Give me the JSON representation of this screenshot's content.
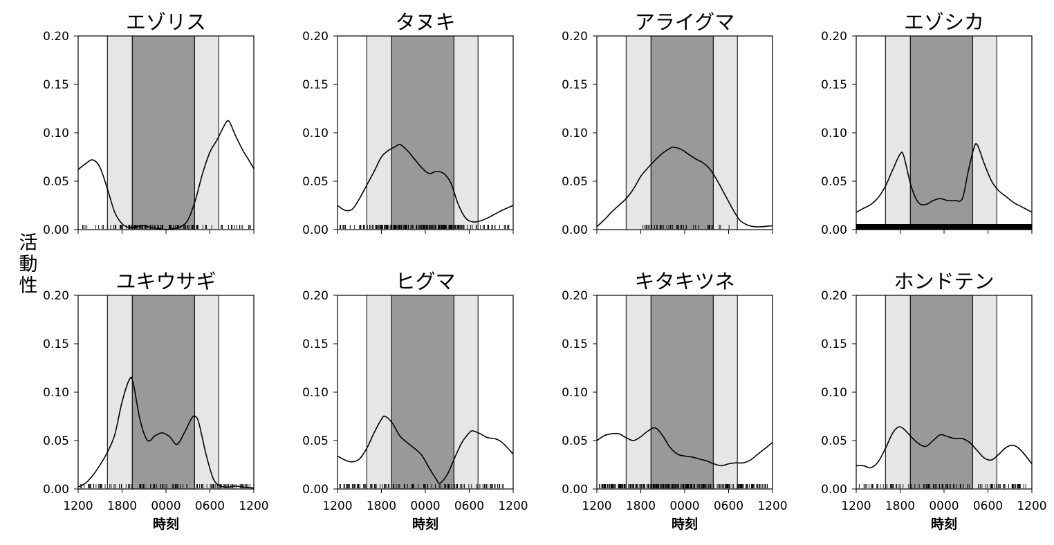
{
  "figure": {
    "ylabel": "活動性",
    "xlabel": "時刻"
  },
  "colors": {
    "twilight_band": "#e6e6e6",
    "night_band": "#999999",
    "curve": "#000000",
    "frame": "#000000"
  },
  "chart_data": [
    {
      "type": "line",
      "title": "エゾリス",
      "x_ticks": [
        "1200",
        "1800",
        "0000",
        "0600",
        "1200"
      ],
      "y_ticks": [
        "0.00",
        "0.05",
        "0.10",
        "0.15",
        "0.20"
      ],
      "ylim": [
        0,
        0.2
      ],
      "xlim": [
        12,
        36
      ],
      "twilight_bands": [
        [
          16,
          19.4
        ],
        [
          27.9,
          31.2
        ]
      ],
      "night_band": [
        19.4,
        27.9
      ],
      "curve": [
        [
          12,
          0.062
        ],
        [
          13,
          0.068
        ],
        [
          14,
          0.072
        ],
        [
          15,
          0.064
        ],
        [
          16,
          0.042
        ],
        [
          17,
          0.018
        ],
        [
          18,
          0.006
        ],
        [
          19,
          0.002
        ],
        [
          20,
          0.003
        ],
        [
          21,
          0.004
        ],
        [
          22,
          0.002
        ],
        [
          23,
          0.001
        ],
        [
          24,
          0
        ],
        [
          25,
          0.001
        ],
        [
          26,
          0.003
        ],
        [
          27,
          0.01
        ],
        [
          28,
          0.03
        ],
        [
          29,
          0.058
        ],
        [
          30,
          0.08
        ],
        [
          31,
          0.093
        ],
        [
          32,
          0.108
        ],
        [
          32.6,
          0.112
        ],
        [
          33.5,
          0.097
        ],
        [
          34.5,
          0.082
        ],
        [
          35.3,
          0.072
        ],
        [
          36,
          0.063
        ]
      ],
      "rug": "sparse-mixed"
    },
    {
      "type": "line",
      "title": "タヌキ",
      "x_ticks": [
        "1200",
        "1800",
        "0000",
        "0600",
        "1200"
      ],
      "y_ticks": [
        "0.00",
        "0.05",
        "0.10",
        "0.15",
        "0.20"
      ],
      "ylim": [
        0,
        0.2
      ],
      "xlim": [
        12,
        36
      ],
      "twilight_bands": [
        [
          16,
          19.4
        ],
        [
          27.9,
          31.2
        ]
      ],
      "night_band": [
        19.4,
        27.9
      ],
      "curve": [
        [
          12,
          0.025
        ],
        [
          13,
          0.02
        ],
        [
          14,
          0.021
        ],
        [
          15,
          0.032
        ],
        [
          16,
          0.046
        ],
        [
          17,
          0.06
        ],
        [
          18,
          0.075
        ],
        [
          19,
          0.082
        ],
        [
          20,
          0.086
        ],
        [
          20.5,
          0.088
        ],
        [
          21.5,
          0.082
        ],
        [
          22.5,
          0.073
        ],
        [
          23.5,
          0.064
        ],
        [
          24.5,
          0.058
        ],
        [
          25.5,
          0.06
        ],
        [
          26.5,
          0.058
        ],
        [
          27.5,
          0.048
        ],
        [
          28.5,
          0.026
        ],
        [
          29.5,
          0.012
        ],
        [
          30.5,
          0.008
        ],
        [
          31.5,
          0.009
        ],
        [
          32.5,
          0.012
        ],
        [
          33.5,
          0.016
        ],
        [
          34.5,
          0.02
        ],
        [
          36,
          0.025
        ]
      ],
      "rug": "dense-night"
    },
    {
      "type": "line",
      "title": "アライグマ",
      "x_ticks": [
        "1200",
        "1800",
        "0000",
        "0600",
        "1200"
      ],
      "y_ticks": [
        "0.00",
        "0.05",
        "0.10",
        "0.15",
        "0.20"
      ],
      "ylim": [
        0,
        0.2
      ],
      "xlim": [
        12,
        36
      ],
      "twilight_bands": [
        [
          16,
          19.4
        ],
        [
          27.9,
          31.2
        ]
      ],
      "night_band": [
        19.4,
        27.9
      ],
      "curve": [
        [
          12,
          0.003
        ],
        [
          13,
          0.01
        ],
        [
          14,
          0.018
        ],
        [
          15,
          0.025
        ],
        [
          16,
          0.032
        ],
        [
          17,
          0.042
        ],
        [
          18,
          0.055
        ],
        [
          19,
          0.064
        ],
        [
          20,
          0.072
        ],
        [
          21,
          0.079
        ],
        [
          22,
          0.084
        ],
        [
          22.5,
          0.085
        ],
        [
          23.5,
          0.083
        ],
        [
          24.5,
          0.078
        ],
        [
          25.5,
          0.073
        ],
        [
          26.5,
          0.069
        ],
        [
          27.5,
          0.062
        ],
        [
          28.5,
          0.05
        ],
        [
          29.5,
          0.036
        ],
        [
          30.5,
          0.022
        ],
        [
          31.5,
          0.01
        ],
        [
          32.5,
          0.005
        ],
        [
          33.5,
          0.003
        ],
        [
          34.5,
          0.003
        ],
        [
          36,
          0.004
        ]
      ],
      "rug": "sparse-night"
    },
    {
      "type": "line",
      "title": "エゾシカ",
      "x_ticks": [
        "1200",
        "1800",
        "0000",
        "0600",
        "1200"
      ],
      "y_ticks": [
        "0.00",
        "0.05",
        "0.10",
        "0.15",
        "0.20"
      ],
      "ylim": [
        0,
        0.2
      ],
      "xlim": [
        12,
        36
      ],
      "twilight_bands": [
        [
          16,
          19.4
        ],
        [
          27.9,
          31.2
        ]
      ],
      "night_band": [
        19.4,
        27.9
      ],
      "curve": [
        [
          12,
          0.018
        ],
        [
          13,
          0.022
        ],
        [
          14,
          0.026
        ],
        [
          15,
          0.033
        ],
        [
          16,
          0.045
        ],
        [
          17,
          0.062
        ],
        [
          18,
          0.078
        ],
        [
          18.5,
          0.076
        ],
        [
          19.5,
          0.045
        ],
        [
          20.5,
          0.028
        ],
        [
          21.5,
          0.026
        ],
        [
          22.5,
          0.03
        ],
        [
          23.5,
          0.032
        ],
        [
          24.5,
          0.03
        ],
        [
          25.5,
          0.03
        ],
        [
          26.5,
          0.032
        ],
        [
          27.3,
          0.06
        ],
        [
          28,
          0.082
        ],
        [
          28.5,
          0.088
        ],
        [
          29.5,
          0.068
        ],
        [
          30.5,
          0.05
        ],
        [
          31.5,
          0.04
        ],
        [
          32.5,
          0.034
        ],
        [
          33.5,
          0.028
        ],
        [
          34.5,
          0.024
        ],
        [
          36,
          0.018
        ]
      ],
      "rug": "solid"
    },
    {
      "type": "line",
      "title": "ユキウサギ",
      "x_ticks": [
        "1200",
        "1800",
        "0000",
        "0600",
        "1200"
      ],
      "y_ticks": [
        "0.00",
        "0.05",
        "0.10",
        "0.15",
        "0.20"
      ],
      "ylim": [
        0,
        0.2
      ],
      "xlim": [
        12,
        36
      ],
      "twilight_bands": [
        [
          16,
          19.4
        ],
        [
          27.9,
          31.2
        ]
      ],
      "night_band": [
        19.4,
        27.9
      ],
      "curve": [
        [
          12,
          0.002
        ],
        [
          13,
          0.006
        ],
        [
          14,
          0.014
        ],
        [
          15,
          0.025
        ],
        [
          16,
          0.038
        ],
        [
          17,
          0.056
        ],
        [
          18,
          0.09
        ],
        [
          19,
          0.113
        ],
        [
          19.5,
          0.11
        ],
        [
          20.5,
          0.07
        ],
        [
          21.5,
          0.05
        ],
        [
          22.5,
          0.055
        ],
        [
          23.5,
          0.058
        ],
        [
          24.5,
          0.054
        ],
        [
          25.5,
          0.046
        ],
        [
          26.5,
          0.058
        ],
        [
          27.5,
          0.073
        ],
        [
          28,
          0.075
        ],
        [
          28.5,
          0.068
        ],
        [
          29.5,
          0.035
        ],
        [
          30.5,
          0.01
        ],
        [
          31.5,
          0.003
        ],
        [
          32.5,
          0.002
        ],
        [
          33.5,
          0.003
        ],
        [
          34.5,
          0.002
        ],
        [
          36,
          0.001
        ]
      ],
      "rug": "sparse-mixed"
    },
    {
      "type": "line",
      "title": "ヒグマ",
      "x_ticks": [
        "1200",
        "1800",
        "0000",
        "0600",
        "1200"
      ],
      "y_ticks": [
        "0.00",
        "0.05",
        "0.10",
        "0.15",
        "0.20"
      ],
      "ylim": [
        0,
        0.2
      ],
      "xlim": [
        12,
        36
      ],
      "twilight_bands": [
        [
          16,
          19.4
        ],
        [
          27.9,
          31.2
        ]
      ],
      "night_band": [
        19.4,
        27.9
      ],
      "curve": [
        [
          12,
          0.034
        ],
        [
          13,
          0.03
        ],
        [
          14,
          0.028
        ],
        [
          15,
          0.031
        ],
        [
          16,
          0.042
        ],
        [
          17,
          0.058
        ],
        [
          18,
          0.072
        ],
        [
          18.5,
          0.075
        ],
        [
          19.5,
          0.068
        ],
        [
          20.5,
          0.055
        ],
        [
          21.5,
          0.048
        ],
        [
          22.5,
          0.042
        ],
        [
          23.5,
          0.035
        ],
        [
          24.5,
          0.022
        ],
        [
          25.5,
          0.01
        ],
        [
          26,
          0.006
        ],
        [
          27,
          0.015
        ],
        [
          28,
          0.032
        ],
        [
          29,
          0.048
        ],
        [
          30,
          0.058
        ],
        [
          30.5,
          0.06
        ],
        [
          31.5,
          0.057
        ],
        [
          32.5,
          0.053
        ],
        [
          33.5,
          0.052
        ],
        [
          34.5,
          0.048
        ],
        [
          36,
          0.036
        ]
      ],
      "rug": "sparse-mixed"
    },
    {
      "type": "line",
      "title": "キタキツネ",
      "x_ticks": [
        "1200",
        "1800",
        "0000",
        "0600",
        "1200"
      ],
      "y_ticks": [
        "0.00",
        "0.05",
        "0.10",
        "0.15",
        "0.20"
      ],
      "ylim": [
        0,
        0.2
      ],
      "xlim": [
        12,
        36
      ],
      "twilight_bands": [
        [
          16,
          19.4
        ],
        [
          27.9,
          31.2
        ]
      ],
      "night_band": [
        19.4,
        27.9
      ],
      "curve": [
        [
          12,
          0.05
        ],
        [
          13,
          0.055
        ],
        [
          14,
          0.057
        ],
        [
          15,
          0.057
        ],
        [
          16,
          0.053
        ],
        [
          17,
          0.05
        ],
        [
          18,
          0.054
        ],
        [
          19,
          0.06
        ],
        [
          20,
          0.063
        ],
        [
          21,
          0.055
        ],
        [
          22,
          0.043
        ],
        [
          23,
          0.036
        ],
        [
          24,
          0.034
        ],
        [
          25,
          0.033
        ],
        [
          26,
          0.031
        ],
        [
          27,
          0.029
        ],
        [
          28,
          0.026
        ],
        [
          29,
          0.024
        ],
        [
          30,
          0.026
        ],
        [
          31,
          0.027
        ],
        [
          32,
          0.027
        ],
        [
          33,
          0.03
        ],
        [
          34,
          0.036
        ],
        [
          35,
          0.042
        ],
        [
          36,
          0.048
        ]
      ],
      "rug": "dense-all"
    },
    {
      "type": "line",
      "title": "ホンドテン",
      "x_ticks": [
        "1200",
        "1800",
        "0000",
        "0600",
        "1200"
      ],
      "y_ticks": [
        "0.00",
        "0.05",
        "0.10",
        "0.15",
        "0.20"
      ],
      "ylim": [
        0,
        0.2
      ],
      "xlim": [
        12,
        36
      ],
      "twilight_bands": [
        [
          16,
          19.4
        ],
        [
          27.9,
          31.2
        ]
      ],
      "night_band": [
        19.4,
        27.9
      ],
      "curve": [
        [
          12,
          0.024
        ],
        [
          13,
          0.024
        ],
        [
          14,
          0.022
        ],
        [
          15,
          0.028
        ],
        [
          16,
          0.042
        ],
        [
          17,
          0.058
        ],
        [
          17.8,
          0.064
        ],
        [
          18.5,
          0.062
        ],
        [
          19.5,
          0.054
        ],
        [
          20.5,
          0.047
        ],
        [
          21.5,
          0.044
        ],
        [
          22.5,
          0.05
        ],
        [
          23.5,
          0.056
        ],
        [
          24.5,
          0.054
        ],
        [
          25.5,
          0.052
        ],
        [
          26.5,
          0.052
        ],
        [
          27.5,
          0.048
        ],
        [
          28.5,
          0.04
        ],
        [
          29.5,
          0.032
        ],
        [
          30.5,
          0.03
        ],
        [
          31.5,
          0.036
        ],
        [
          32.5,
          0.043
        ],
        [
          33.5,
          0.045
        ],
        [
          34.5,
          0.04
        ],
        [
          36,
          0.026
        ]
      ],
      "rug": "sparse-mixed"
    }
  ]
}
